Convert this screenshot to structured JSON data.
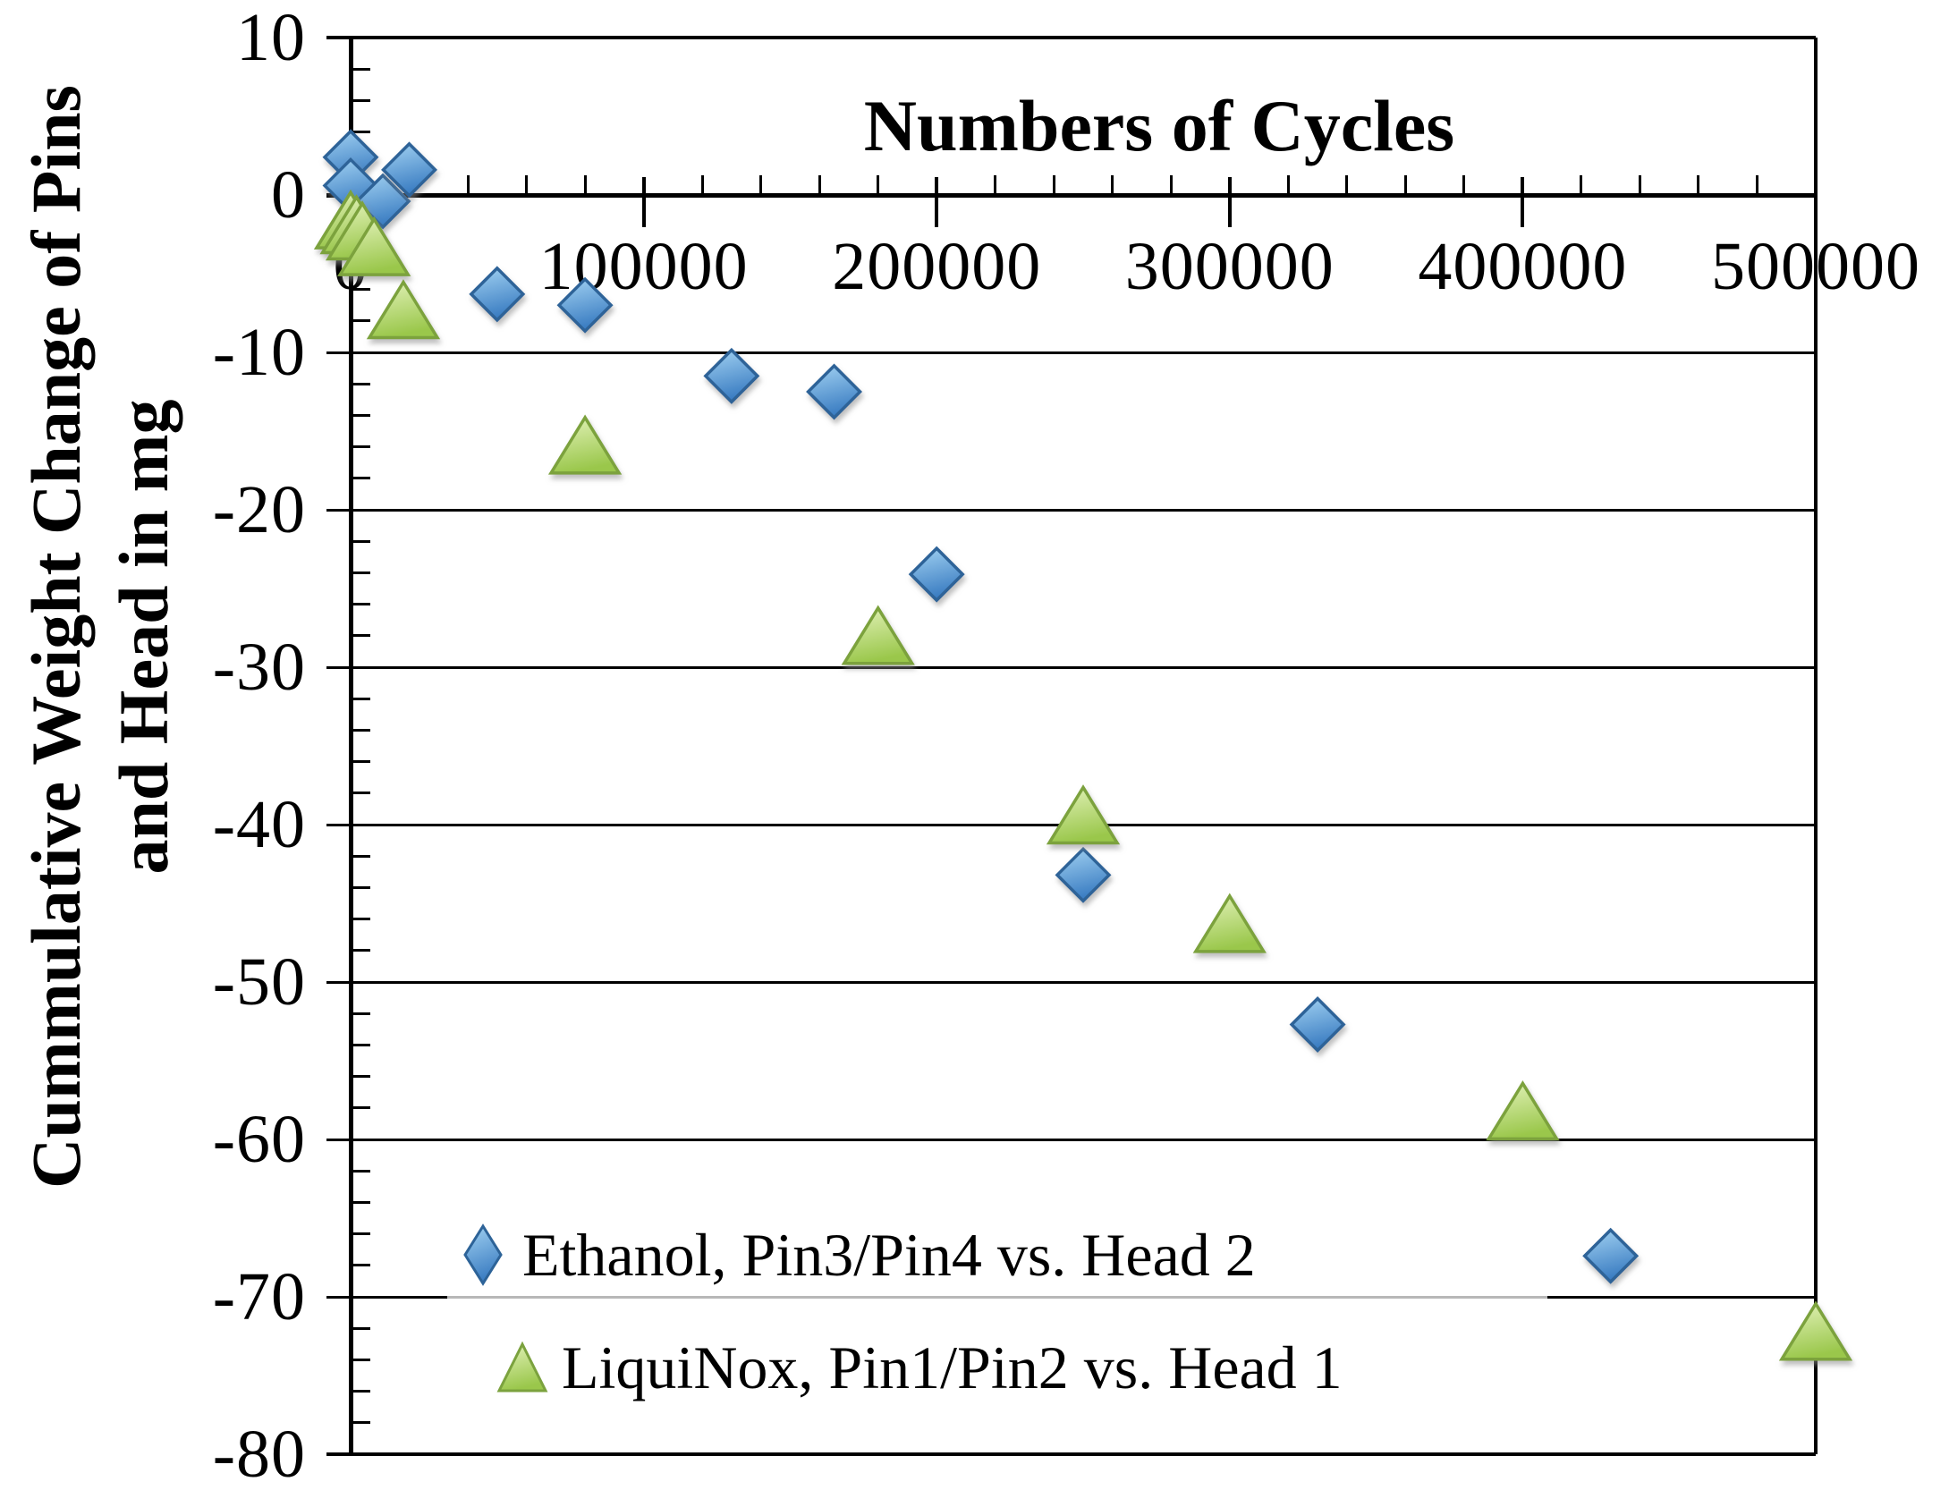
{
  "chart_data": {
    "type": "scatter",
    "title": "Numbers of Cycles",
    "ylabel_line1": "Cummulative Weight Change of Pins",
    "ylabel_line2": "and Head in mg",
    "xlim": [
      0,
      500000
    ],
    "ylim": [
      -80,
      10
    ],
    "x_major_ticks": [
      0,
      100000,
      200000,
      300000,
      400000,
      500000
    ],
    "x_tick_labels": [
      "0",
      "100000",
      "200000",
      "300000",
      "400000",
      "500000"
    ],
    "x_minor_step": 20000,
    "y_major_ticks": [
      10,
      0,
      -10,
      -20,
      -30,
      -40,
      -50,
      -60,
      -70,
      -80
    ],
    "y_tick_labels": [
      "10",
      "0",
      "-10",
      "-20",
      "-30",
      "-40",
      "-50",
      "-60",
      "-70",
      "-80"
    ],
    "y_minor_step": 2,
    "gridlines_y": [
      -10,
      -20,
      -30,
      -40,
      -50,
      -60,
      -70
    ],
    "grid": "horizontal-major",
    "legend_position": "inside-bottom-left",
    "series": [
      {
        "name": "Ethanol, Pin3/Pin4 vs. Head 2",
        "marker": "diamond",
        "color_top": "#A2D2F2",
        "color_bottom": "#3B7DC2",
        "stroke": "#2D6398",
        "points": [
          [
            0,
            2.4
          ],
          [
            0,
            0.6
          ],
          [
            11000,
            -0.4
          ],
          [
            20000,
            1.6
          ],
          [
            50000,
            -6.3
          ],
          [
            80000,
            -7.0
          ],
          [
            130000,
            -11.5
          ],
          [
            165000,
            -12.5
          ],
          [
            200000,
            -24.1
          ],
          [
            250000,
            -43.2
          ],
          [
            330000,
            -52.7
          ],
          [
            430000,
            -67.4
          ]
        ]
      },
      {
        "name": "LiquiNox, Pin1/Pin2 vs. Head 1",
        "marker": "triangle",
        "color_top": "#E3F2BA",
        "color_bottom": "#9AC74B",
        "stroke": "#7BA23E",
        "points": [
          [
            0,
            -1.6
          ],
          [
            2000,
            -1.9
          ],
          [
            4000,
            -2.3
          ],
          [
            8000,
            -3.3
          ],
          [
            18000,
            -7.3
          ],
          [
            80000,
            -15.9
          ],
          [
            180000,
            -28.0
          ],
          [
            250000,
            -39.4
          ],
          [
            300000,
            -46.3
          ],
          [
            400000,
            -58.2
          ],
          [
            500000,
            -72.2
          ]
        ]
      }
    ]
  }
}
